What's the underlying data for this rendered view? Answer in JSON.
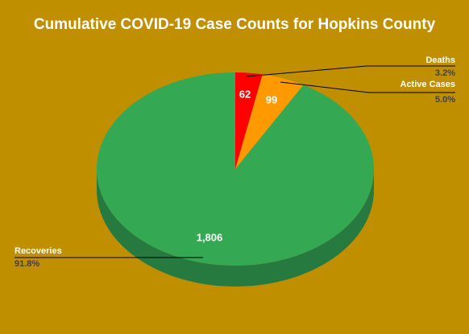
{
  "chart_data": {
    "type": "pie3d",
    "title": "Cumulative COVID-19 Case Counts for Hopkins County",
    "categories": [
      "Deaths",
      "Active Cases",
      "Recoveries"
    ],
    "values": [
      62,
      99,
      1806
    ],
    "value_labels": [
      "62",
      "99",
      "1,806"
    ],
    "percents": [
      3.2,
      5.0,
      91.8
    ],
    "percent_labels": [
      "3.2%",
      "5.0%",
      "91.8%"
    ],
    "colors": [
      "#ff0000",
      "#ff9900",
      "#34a853"
    ]
  }
}
